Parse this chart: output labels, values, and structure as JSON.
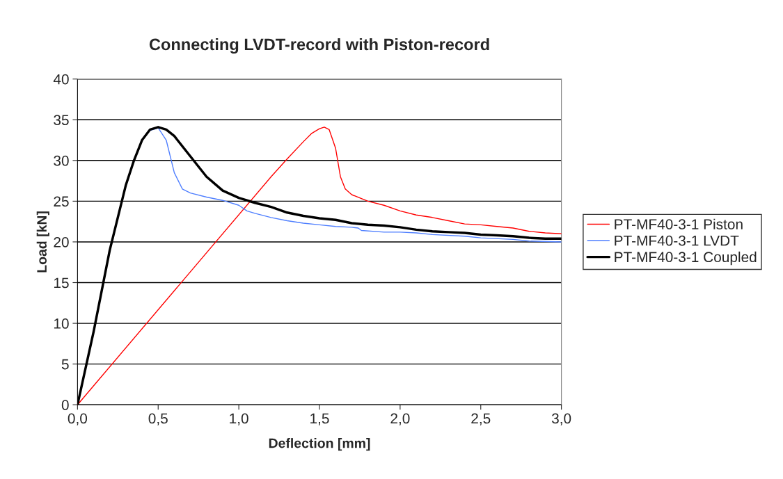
{
  "chart_data": {
    "type": "line",
    "title": "Connecting LVDT-record with Piston-record",
    "xlabel": "Deflection [mm]",
    "ylabel": "Load [kN]",
    "xlim": [
      0,
      3
    ],
    "ylim": [
      0,
      40
    ],
    "xticks": [
      {
        "value": 0,
        "label": "0,0"
      },
      {
        "value": 0.5,
        "label": "0,5"
      },
      {
        "value": 1,
        "label": "1,0"
      },
      {
        "value": 1.5,
        "label": "1,5"
      },
      {
        "value": 2,
        "label": "2,0"
      },
      {
        "value": 2.5,
        "label": "2,5"
      },
      {
        "value": 3,
        "label": "3,0"
      }
    ],
    "yticks": [
      0,
      5,
      10,
      15,
      20,
      25,
      30,
      35,
      40
    ],
    "grid": "y",
    "legend": "right",
    "marker": "none",
    "line_style": "solid",
    "series": [
      {
        "name": "PT-MF40-3-1 Piston",
        "color": "#ff0000",
        "x": [
          0,
          1.2,
          1.3,
          1.4,
          1.45,
          1.5,
          1.53,
          1.56,
          1.6,
          1.63,
          1.66,
          1.7,
          1.8,
          1.9,
          2.0,
          2.1,
          2.2,
          2.3,
          2.4,
          2.5,
          2.6,
          2.7,
          2.8,
          2.9,
          3.0
        ],
        "values": [
          0,
          28,
          30.2,
          32.3,
          33.3,
          33.9,
          34.1,
          33.8,
          31.5,
          28,
          26.5,
          25.8,
          25,
          24.5,
          23.8,
          23.3,
          23,
          22.6,
          22.2,
          22.1,
          21.9,
          21.7,
          21.3,
          21.1,
          21
        ]
      },
      {
        "name": "PT-MF40-3-1 LVDT",
        "color": "#4f7fff",
        "x": [
          0.45,
          0.5,
          0.55,
          0.6,
          0.65,
          0.7,
          0.8,
          0.9,
          1.0,
          1.05,
          1.1,
          1.2,
          1.3,
          1.4,
          1.5,
          1.6,
          1.7,
          1.74,
          1.76,
          1.9,
          2.0,
          2.1,
          2.2,
          2.4,
          2.5,
          2.7,
          2.8,
          3.0
        ],
        "values": [
          33.7,
          34,
          32.5,
          28.5,
          26.5,
          26,
          25.5,
          25.1,
          24.5,
          23.8,
          23.5,
          23,
          22.6,
          22.3,
          22.1,
          21.9,
          21.8,
          21.7,
          21.4,
          21.2,
          21.2,
          21.1,
          20.9,
          20.7,
          20.5,
          20.3,
          20.1,
          20
        ]
      },
      {
        "name": "PT-MF40-3-1 Coupled",
        "color": "#000000",
        "x": [
          0,
          0.1,
          0.2,
          0.3,
          0.35,
          0.4,
          0.45,
          0.5,
          0.55,
          0.6,
          0.7,
          0.8,
          0.9,
          1.0,
          1.1,
          1.2,
          1.3,
          1.4,
          1.5,
          1.6,
          1.7,
          1.8,
          1.9,
          2.0,
          2.1,
          2.2,
          2.3,
          2.4,
          2.5,
          2.6,
          2.7,
          2.8,
          2.9,
          3.0
        ],
        "values": [
          0,
          9,
          19,
          27,
          30,
          32.5,
          33.8,
          34.1,
          33.8,
          33,
          30.5,
          28,
          26.3,
          25.4,
          24.8,
          24.3,
          23.6,
          23.2,
          22.9,
          22.7,
          22.3,
          22.1,
          22,
          21.8,
          21.5,
          21.3,
          21.2,
          21.1,
          20.9,
          20.8,
          20.7,
          20.5,
          20.4,
          20.4
        ]
      }
    ]
  }
}
